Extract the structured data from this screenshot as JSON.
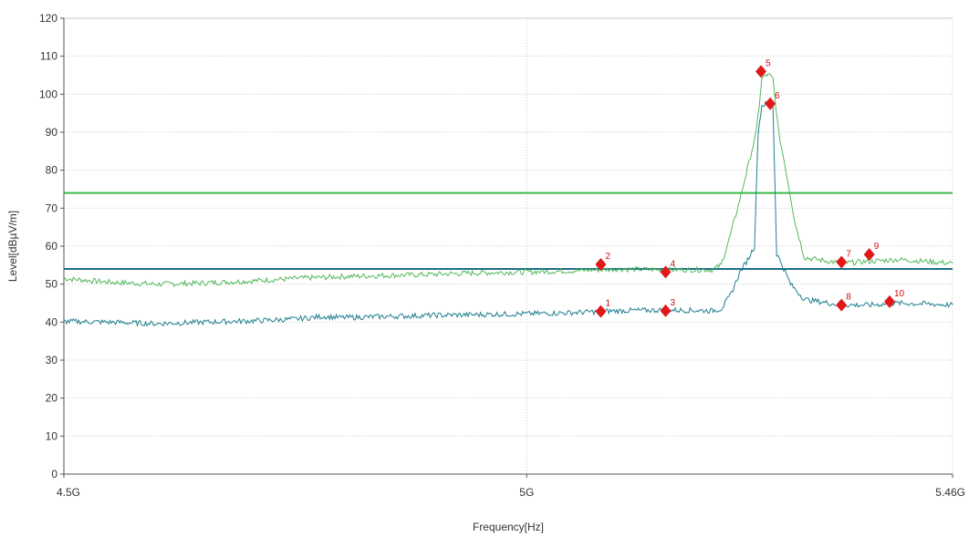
{
  "chart_data": {
    "type": "line",
    "title": "",
    "xlabel": "Frequency[Hz]",
    "ylabel": "Level[dBµV/m]",
    "xlim": [
      4500000000,
      5460000000
    ],
    "ylim": [
      0,
      120
    ],
    "x_ticks": [
      {
        "value": 4500000000,
        "label": "4.5G"
      },
      {
        "value": 5000000000,
        "label": "5G"
      },
      {
        "value": 5460000000,
        "label": "5.46G"
      }
    ],
    "y_ticks": [
      0,
      10,
      20,
      30,
      40,
      50,
      60,
      70,
      80,
      90,
      100,
      110,
      120
    ],
    "grid": true,
    "limit_lines": [
      {
        "value": 74,
        "color": "#3cb84a"
      },
      {
        "value": 54,
        "color": "#1f6f8b"
      }
    ],
    "series": [
      {
        "color": "#52b85c",
        "x": [
          4500000000,
          4550000000,
          4600000000,
          4650000000,
          4700000000,
          4750000000,
          4780000000,
          4800000000,
          4850000000,
          4900000000,
          4950000000,
          5000000000,
          5050000000,
          5080000000,
          5100000000,
          5150000000,
          5200000000,
          5210000000,
          5220000000,
          5230000000,
          5240000000,
          5248000000,
          5254000000,
          5258000000,
          5262000000,
          5266000000,
          5272000000,
          5280000000,
          5290000000,
          5300000000,
          5340000000,
          5370000000,
          5400000000,
          5430000000,
          5460000000
        ],
        "values": [
          51.5,
          50.5,
          50,
          50.3,
          50.8,
          51.5,
          51.8,
          52,
          52.3,
          52.6,
          53,
          53.2,
          53.5,
          53.8,
          54,
          53.8,
          53.8,
          55,
          63,
          72,
          82,
          90,
          104,
          105,
          105,
          104,
          90,
          80,
          66,
          57,
          55.5,
          56,
          56.5,
          56,
          55.5
        ]
      },
      {
        "color": "#1f7f8f",
        "x": [
          4500000000,
          4550000000,
          4600000000,
          4650000000,
          4700000000,
          4750000000,
          4780000000,
          4800000000,
          4850000000,
          4900000000,
          4950000000,
          5000000000,
          5050000000,
          5080000000,
          5100000000,
          5150000000,
          5200000000,
          5210000000,
          5220000000,
          5230000000,
          5240000000,
          5246000000,
          5250000000,
          5254000000,
          5258000000,
          5262000000,
          5266000000,
          5270000000,
          5276000000,
          5285000000,
          5300000000,
          5340000000,
          5370000000,
          5400000000,
          5430000000,
          5460000000
        ],
        "values": [
          40.2,
          40,
          39.6,
          40,
          40.3,
          40.8,
          41.5,
          41.2,
          41.5,
          41.8,
          42,
          42.2,
          42.5,
          42.8,
          43,
          43.2,
          43,
          43.5,
          47,
          53,
          57,
          60,
          90,
          97,
          97.5,
          98,
          97,
          58,
          55,
          50,
          46,
          44.5,
          44.5,
          45,
          44.8,
          44.5
        ]
      }
    ],
    "markers": [
      {
        "label": "1",
        "x": 5080000000,
        "y": 42.8
      },
      {
        "label": "2",
        "x": 5080000000,
        "y": 55.2
      },
      {
        "label": "3",
        "x": 5150000000,
        "y": 43.0
      },
      {
        "label": "4",
        "x": 5150000000,
        "y": 53.2
      },
      {
        "label": "5",
        "x": 5253000000,
        "y": 106.0
      },
      {
        "label": "6",
        "x": 5263000000,
        "y": 97.5
      },
      {
        "label": "7",
        "x": 5340000000,
        "y": 55.8
      },
      {
        "label": "8",
        "x": 5340000000,
        "y": 44.5
      },
      {
        "label": "9",
        "x": 5370000000,
        "y": 57.8
      },
      {
        "label": "10",
        "x": 5392000000,
        "y": 45.4
      }
    ],
    "colors": {
      "grid": "#c8c8c8",
      "axis": "#555555",
      "marker": "#e01818",
      "background": "#ffffff"
    }
  }
}
